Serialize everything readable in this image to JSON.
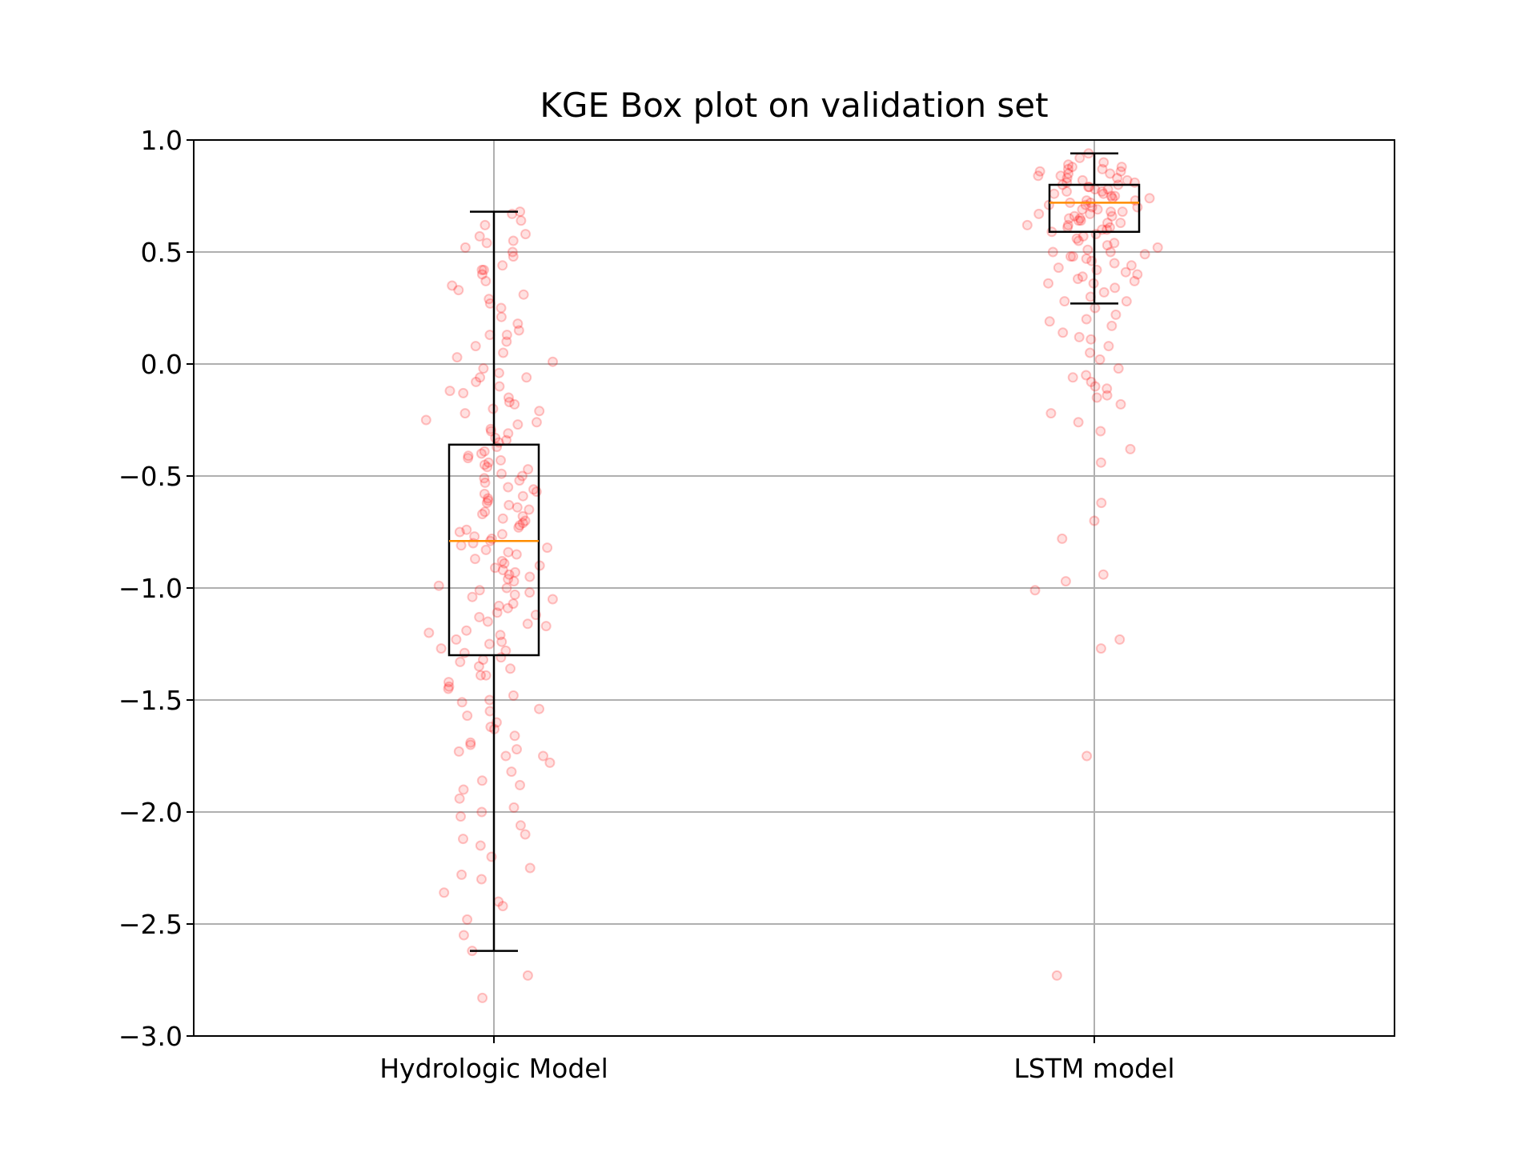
{
  "chart_data": {
    "type": "box",
    "title": "KGE Box plot on validation set",
    "xlabel": "",
    "ylabel": "",
    "categories": [
      "Hydrologic Model",
      "LSTM model"
    ],
    "ylim": [
      -3.0,
      1.0
    ],
    "yticks": [
      1.0,
      0.5,
      0.0,
      -0.5,
      -1.0,
      -1.5,
      -2.0,
      -2.5,
      -3.0
    ],
    "ytick_labels": [
      "1.0",
      "0.5",
      "0.0",
      "−0.5",
      "−1.0",
      "−1.5",
      "−2.0",
      "−2.5",
      "−3.0"
    ],
    "grid": true,
    "boxes": [
      {
        "category": "Hydrologic Model",
        "whisker_low": -2.62,
        "q1": -1.3,
        "median": -0.79,
        "q3": -0.36,
        "whisker_high": 0.68
      },
      {
        "category": "LSTM model",
        "whisker_low": 0.27,
        "q1": 0.59,
        "median": 0.72,
        "q3": 0.8,
        "whisker_high": 0.94
      }
    ],
    "points": [
      {
        "category": "Hydrologic Model",
        "values": [
          0.68,
          0.67,
          0.64,
          0.62,
          0.58,
          0.57,
          0.55,
          0.54,
          0.52,
          0.5,
          0.48,
          0.44,
          0.42,
          0.4,
          0.37,
          0.35,
          0.33,
          0.31,
          0.29,
          0.27,
          0.25,
          0.21,
          0.18,
          0.15,
          0.13,
          0.1,
          0.08,
          0.05,
          0.03,
          0.01,
          -0.02,
          -0.04,
          -0.06,
          -0.08,
          -0.1,
          -0.13,
          -0.15,
          -0.18,
          -0.2,
          -0.22,
          -0.25,
          -0.27,
          -0.29,
          -0.31,
          -0.33,
          -0.35,
          -0.37,
          -0.39,
          -0.41,
          -0.43,
          -0.45,
          -0.47,
          -0.49,
          -0.51,
          -0.53,
          -0.55,
          -0.57,
          -0.59,
          -0.61,
          -0.63,
          -0.65,
          -0.67,
          -0.69,
          -0.71,
          -0.73,
          -0.75,
          -0.77,
          -0.79,
          -0.81,
          -0.83,
          -0.85,
          -0.87,
          -0.89,
          -0.91,
          -0.93,
          -0.95,
          -0.97,
          -0.99,
          -1.01,
          -1.03,
          -1.05,
          -1.07,
          -1.09,
          -1.11,
          -1.13,
          -1.15,
          -1.17,
          -1.19,
          -1.21,
          -1.23,
          -1.25,
          -1.27,
          -1.29,
          -1.31,
          -1.33,
          -1.36,
          -1.39,
          -1.42,
          -1.45,
          -1.48,
          -1.51,
          -1.54,
          -1.57,
          -1.6,
          -1.63,
          -1.66,
          -1.69,
          -1.72,
          -1.75,
          -1.78,
          -1.82,
          -1.86,
          -1.9,
          -1.94,
          -1.98,
          -2.02,
          -2.06,
          -2.1,
          -2.15,
          -2.2,
          -2.25,
          -2.3,
          -2.36,
          -2.42,
          -2.48,
          -2.55,
          -2.62,
          -2.73,
          -2.83,
          -0.84,
          -1.55,
          -1.73,
          -1.39,
          -1.75,
          0.42,
          0.13,
          -0.72,
          -0.7,
          -0.68,
          -0.74,
          -0.66,
          -0.62,
          -0.6,
          -0.76,
          -0.78,
          -0.8,
          -0.82,
          -0.58,
          -0.56,
          -0.64,
          -0.88,
          -0.9,
          -0.92,
          -0.94,
          -0.96,
          -0.52,
          -0.5,
          -0.46,
          -0.44,
          -0.42,
          -0.4,
          -1.0,
          -1.02,
          -1.04,
          -1.08,
          -1.12,
          -1.16,
          -1.2,
          -1.24,
          -1.28,
          -0.34,
          -0.3,
          -0.26,
          -0.21,
          -0.17,
          -0.12,
          -0.06,
          -1.32,
          -1.35,
          -1.44,
          -1.5,
          -1.62,
          -1.7,
          -1.88,
          -2.0,
          -2.12,
          -2.28,
          -2.4
        ]
      },
      {
        "category": "LSTM model",
        "values": [
          0.94,
          0.92,
          0.9,
          0.89,
          0.88,
          0.87,
          0.86,
          0.85,
          0.84,
          0.83,
          0.82,
          0.81,
          0.8,
          0.79,
          0.78,
          0.77,
          0.76,
          0.75,
          0.74,
          0.73,
          0.72,
          0.71,
          0.7,
          0.69,
          0.68,
          0.67,
          0.66,
          0.65,
          0.64,
          0.63,
          0.62,
          0.61,
          0.6,
          0.59,
          0.58,
          0.56,
          0.54,
          0.52,
          0.5,
          0.48,
          0.46,
          0.44,
          0.42,
          0.4,
          0.38,
          0.36,
          0.34,
          0.32,
          0.3,
          0.28,
          0.25,
          0.22,
          0.2,
          0.17,
          0.14,
          0.11,
          0.08,
          0.05,
          0.02,
          -0.02,
          -0.05,
          -0.08,
          -0.11,
          -0.14,
          -0.18,
          -0.22,
          -0.26,
          -0.3,
          -0.38,
          -0.44,
          -0.62,
          -0.7,
          -0.78,
          -0.94,
          -0.97,
          -1.01,
          -1.23,
          -1.27,
          -1.75,
          -2.73,
          0.76,
          0.74,
          0.78,
          0.8,
          0.72,
          0.7,
          0.82,
          0.84,
          0.68,
          0.66,
          0.86,
          0.64,
          0.75,
          0.73,
          0.77,
          0.71,
          0.79,
          0.69,
          0.81,
          0.67,
          0.83,
          0.65,
          0.85,
          0.63,
          0.87,
          0.61,
          0.62,
          0.88,
          0.6,
          0.57,
          0.55,
          0.53,
          0.51,
          0.49,
          0.47,
          0.45,
          0.43,
          0.41,
          0.39,
          0.37,
          0.5,
          0.48,
          0.36,
          0.28,
          0.19,
          0.12,
          -0.06,
          -0.1,
          -0.15
        ]
      }
    ],
    "colors": {
      "points": "#ff0000",
      "median": "#ff8c00",
      "box": "#000000",
      "grid": "#b0b0b0"
    }
  }
}
